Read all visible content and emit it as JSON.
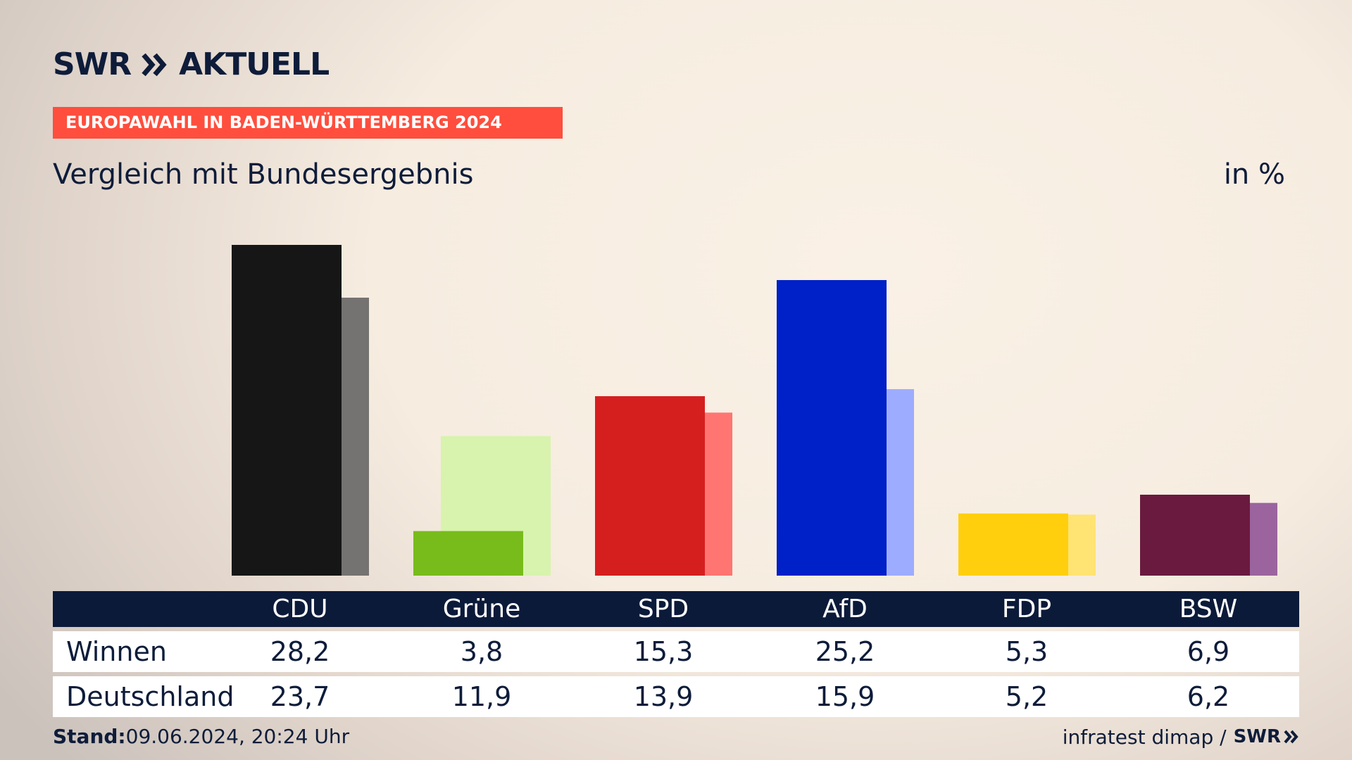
{
  "brand": {
    "logo_text": "SWR",
    "logo_suffix": "AKTUELL",
    "mini_logo_text": "SWR"
  },
  "banner": {
    "text": "EUROPAWAHL IN BADEN-WÜRTTEMBERG 2024"
  },
  "header": {
    "subtitle": "Vergleich mit Bundesergebnis",
    "unit": "in %"
  },
  "chart_data": {
    "type": "bar",
    "ylim": [
      0,
      30
    ],
    "grid": false,
    "categories": [
      "CDU",
      "Grüne",
      "SPD",
      "AfD",
      "FDP",
      "BSW"
    ],
    "series": [
      {
        "name": "Winnen",
        "values": [
          28.2,
          3.8,
          15.3,
          25.2,
          5.3,
          6.9
        ],
        "labels": [
          "28,2",
          "3,8",
          "15,3",
          "25,2",
          "5,3",
          "6,9"
        ],
        "colors": [
          "#161616",
          "#78bc1b",
          "#d51f1f",
          "#0020c8",
          "#ffcf0e",
          "#6a1a3f"
        ]
      },
      {
        "name": "Deutschland",
        "values": [
          23.7,
          11.9,
          13.9,
          15.9,
          5.2,
          6.2
        ],
        "labels": [
          "23,7",
          "11,9",
          "13,9",
          "15,9",
          "5,2",
          "6,2"
        ],
        "colors": [
          "#757371",
          "#d8f3ad",
          "#ff7571",
          "#9eacff",
          "#ffe373",
          "#9b649f"
        ]
      }
    ]
  },
  "footer": {
    "stand_label": "Stand:",
    "stand_value": "09.06.2024, 20:24 Uhr",
    "source": "infratest dimap /"
  }
}
